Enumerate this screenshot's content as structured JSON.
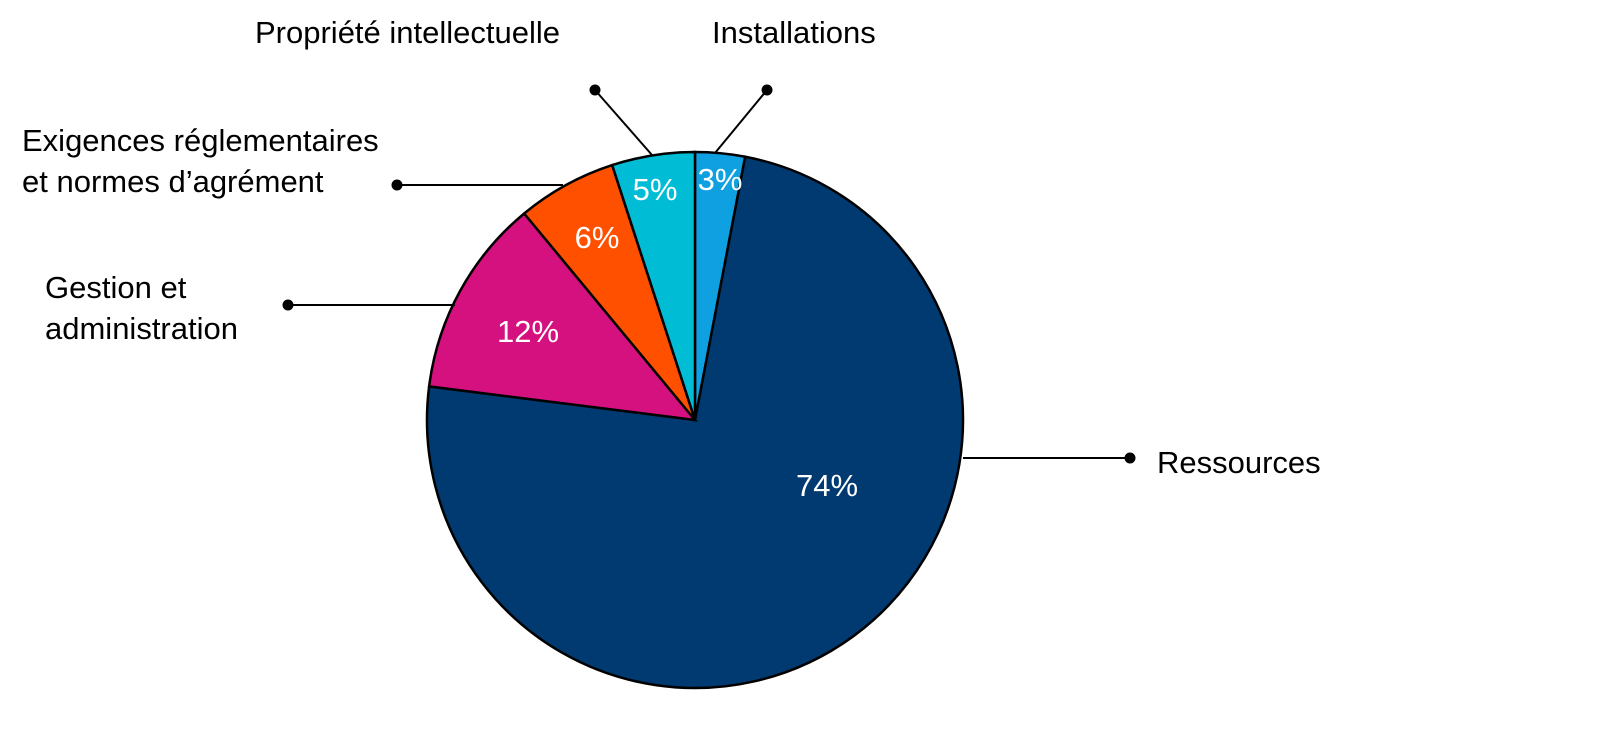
{
  "chart_data": {
    "type": "pie",
    "categories": [
      "Installations",
      "Ressources",
      "Gestion et\nadministration",
      "Exigences réglementaires\net normes d’agrément",
      "Propriété intellectuelle"
    ],
    "values": [
      3,
      74,
      12,
      6,
      5
    ],
    "value_labels": [
      "3%",
      "74%",
      "12%",
      "6%",
      "5%"
    ],
    "colors": [
      "#0ea0e0",
      "#003a70",
      "#d4117e",
      "#ff5000",
      "#00bcd4"
    ]
  }
}
